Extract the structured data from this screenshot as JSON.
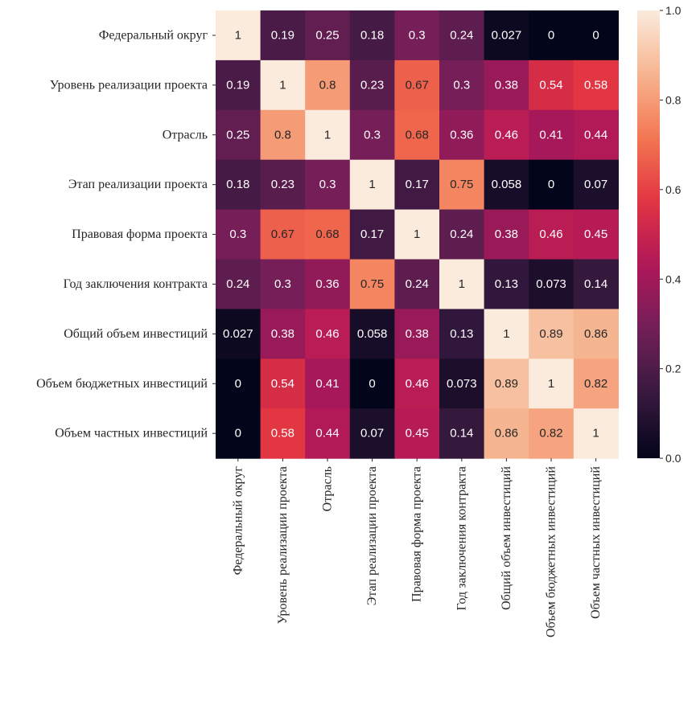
{
  "chart_data": {
    "type": "heatmap",
    "rows": [
      "Федеральный округ",
      "Уровень реализации проекта",
      "Отрасль",
      "Этап реализации проекта",
      "Правовая форма проекта",
      "Год заключения контракта",
      "Общий объем инвестиций",
      "Объем бюджетных инвестиций",
      "Объем частных инвестиций"
    ],
    "columns": [
      "Федеральный округ",
      "Уровень реализации проекта",
      "Отрасль",
      "Этап реализации проекта",
      "Правовая форма проекта",
      "Год заключения контракта",
      "Общий объем инвестиций",
      "Объем бюджетных инвестиций",
      "Объем частных инвестиций"
    ],
    "values": [
      [
        1,
        0.19,
        0.25,
        0.18,
        0.3,
        0.24,
        0.027,
        0,
        0
      ],
      [
        0.19,
        1,
        0.8,
        0.23,
        0.67,
        0.3,
        0.38,
        0.54,
        0.58
      ],
      [
        0.25,
        0.8,
        1,
        0.3,
        0.68,
        0.36,
        0.46,
        0.41,
        0.44
      ],
      [
        0.18,
        0.23,
        0.3,
        1,
        0.17,
        0.75,
        0.058,
        0,
        0.07
      ],
      [
        0.3,
        0.67,
        0.68,
        0.17,
        1,
        0.24,
        0.38,
        0.46,
        0.45
      ],
      [
        0.24,
        0.3,
        0.36,
        0.75,
        0.24,
        1,
        0.13,
        0.073,
        0.14
      ],
      [
        0.027,
        0.38,
        0.46,
        0.058,
        0.38,
        0.13,
        1,
        0.89,
        0.86
      ],
      [
        0,
        0.54,
        0.41,
        0,
        0.46,
        0.073,
        0.89,
        1,
        0.82
      ],
      [
        0,
        0.58,
        0.44,
        0.07,
        0.45,
        0.14,
        0.86,
        0.82,
        1
      ]
    ],
    "value_labels": [
      [
        "1",
        "0.19",
        "0.25",
        "0.18",
        "0.3",
        "0.24",
        "0.027",
        "0",
        "0"
      ],
      [
        "0.19",
        "1",
        "0.8",
        "0.23",
        "0.67",
        "0.3",
        "0.38",
        "0.54",
        "0.58"
      ],
      [
        "0.25",
        "0.8",
        "1",
        "0.3",
        "0.68",
        "0.36",
        "0.46",
        "0.41",
        "0.44"
      ],
      [
        "0.18",
        "0.23",
        "0.3",
        "1",
        "0.17",
        "0.75",
        "0.058",
        "0",
        "0.07"
      ],
      [
        "0.3",
        "0.67",
        "0.68",
        "0.17",
        "1",
        "0.24",
        "0.38",
        "0.46",
        "0.45"
      ],
      [
        "0.24",
        "0.3",
        "0.36",
        "0.75",
        "0.24",
        "1",
        "0.13",
        "0.073",
        "0.14"
      ],
      [
        "0.027",
        "0.38",
        "0.46",
        "0.058",
        "0.38",
        "0.13",
        "1",
        "0.89",
        "0.86"
      ],
      [
        "0",
        "0.54",
        "0.41",
        "0",
        "0.46",
        "0.073",
        "0.89",
        "1",
        "0.82"
      ],
      [
        "0",
        "0.58",
        "0.44",
        "0.07",
        "0.45",
        "0.14",
        "0.86",
        "0.82",
        "1"
      ]
    ],
    "colorbar": {
      "range": [
        0,
        1
      ],
      "ticks": [
        0.0,
        0.2,
        0.4,
        0.6,
        0.8,
        1.0
      ],
      "tick_labels": [
        "0.0",
        "0.2",
        "0.4",
        "0.6",
        "0.8",
        "1.0"
      ]
    },
    "colormap_stops": [
      "#03051a",
      "#36193e",
      "#701f57",
      "#ae1759",
      "#e13342",
      "#f37651",
      "#f6b48f",
      "#faebdd"
    ],
    "annotation_text_colors": {
      "dark_cells": "#ffffff",
      "light_cells": "#262626"
    },
    "title": "",
    "xlabel": "",
    "ylabel": "",
    "grid": false,
    "legend": "colorbar-right"
  }
}
